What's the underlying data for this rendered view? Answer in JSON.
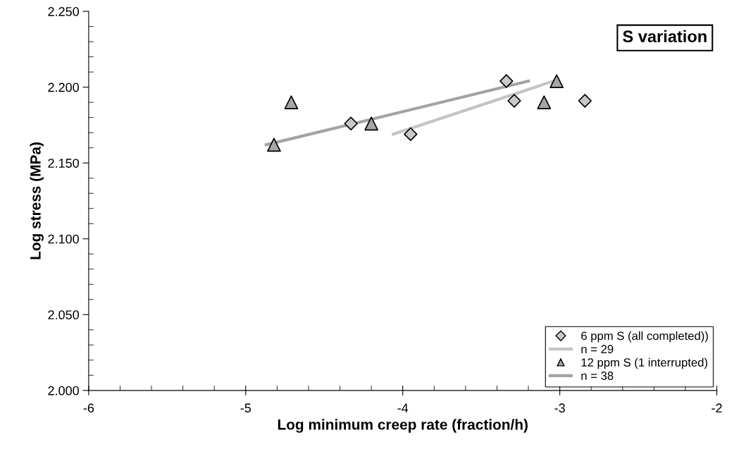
{
  "chart_data": {
    "type": "scatter",
    "xlabel": "Log minimum creep rate (fraction/h)",
    "ylabel": "Log stress (MPa)",
    "annotations": [
      "S variation"
    ],
    "xlim": [
      -6,
      -2
    ],
    "xticks": [
      -6,
      -5,
      -4,
      -3,
      -2
    ],
    "ylim": [
      2.0,
      2.25
    ],
    "yticks": [
      {
        "value": 2.0,
        "label": "2.000"
      },
      {
        "value": 2.05,
        "label": "2.050"
      },
      {
        "value": 2.1,
        "label": "2.100"
      },
      {
        "value": 2.15,
        "label": "2.150"
      },
      {
        "value": 2.2,
        "label": "2.200"
      },
      {
        "value": 2.25,
        "label": "2.250"
      }
    ],
    "grid": false,
    "legend": "bottom right",
    "series": [
      {
        "name": "6 ppm S (all completed))",
        "marker": "diamond",
        "color": "#c8c8c8",
        "x": [
          -4.33,
          -3.95,
          -3.34,
          -3.29,
          -2.84
        ],
        "values": [
          2.176,
          2.169,
          2.204,
          2.191,
          2.191
        ]
      },
      {
        "name": "n = 29",
        "type": "line",
        "marker": "none",
        "color": "#c4c4c4",
        "x": [
          -4.06,
          -3.04
        ],
        "values": [
          2.169,
          2.204
        ]
      },
      {
        "name": "12 ppm S (1 interrupted)",
        "marker": "triangle",
        "color": "#a6a6a6",
        "x": [
          -4.82,
          -4.71,
          -4.2,
          -3.1,
          -3.02
        ],
        "values": [
          2.162,
          2.19,
          2.176,
          2.19,
          2.204
        ]
      },
      {
        "name": "n = 38",
        "type": "line",
        "marker": "none",
        "color": "#a3a3a3",
        "x": [
          -4.87,
          -3.2
        ],
        "values": [
          2.162,
          2.204
        ]
      }
    ]
  }
}
